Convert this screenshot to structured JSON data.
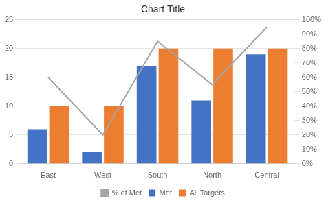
{
  "chart_data": {
    "type": "bar",
    "title": "Chart Title",
    "categories": [
      "East",
      "West",
      "South",
      "North",
      "Central"
    ],
    "series": [
      {
        "name": "Met",
        "color": "#4472C4",
        "values": [
          6,
          2,
          17,
          11,
          19
        ]
      },
      {
        "name": "All Targets",
        "color": "#ED7D31",
        "values": [
          10,
          10,
          20,
          20,
          20
        ]
      },
      {
        "name": "% of Met",
        "type": "line",
        "axis": "y2",
        "color": "#A5A5A5",
        "marker": "none",
        "values": [
          0.6,
          0.2,
          0.85,
          0.55,
          0.95
        ]
      }
    ],
    "ylim": [
      0,
      25
    ],
    "yticks": [
      0,
      5,
      10,
      15,
      20,
      25
    ],
    "y2lim": [
      0,
      1.0
    ],
    "y2ticks": [
      {
        "value": 0.0,
        "label": "0%"
      },
      {
        "value": 0.1,
        "label": "10%"
      },
      {
        "value": 0.2,
        "label": "20%"
      },
      {
        "value": 0.3,
        "label": "30%"
      },
      {
        "value": 0.4,
        "label": "40%"
      },
      {
        "value": 0.5,
        "label": "50%"
      },
      {
        "value": 0.6,
        "label": "60%"
      },
      {
        "value": 0.7,
        "label": "70%"
      },
      {
        "value": 0.8,
        "label": "80%"
      },
      {
        "value": 0.9,
        "label": "90%"
      },
      {
        "value": 1.0,
        "label": "100%"
      }
    ],
    "grid": true,
    "legend": "bottom"
  }
}
